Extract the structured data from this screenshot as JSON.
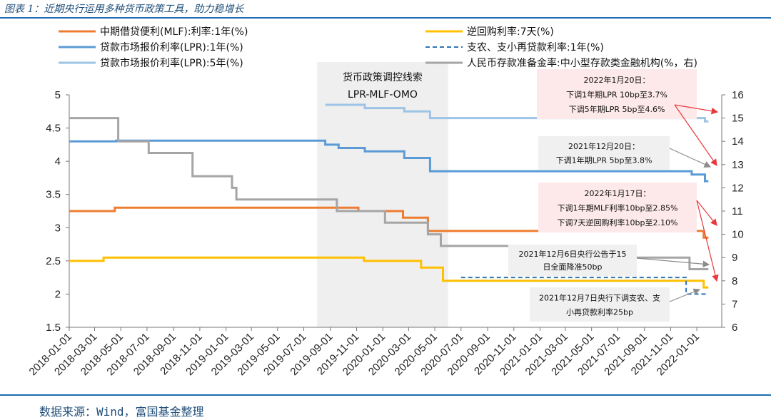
{
  "header": {
    "figure_title": "图表 1：近期央行运用多种货币政策工具，助力稳增长"
  },
  "footer": {
    "source": "数据来源：Wind，富国基金整理"
  },
  "chart_data": {
    "type": "line",
    "x_type": "date",
    "xlim": [
      "2018-01-01",
      "2022-02-28"
    ],
    "x_tick_labels": [
      "2018-01-01",
      "2018-03-01",
      "2018-05-01",
      "2018-07-01",
      "2018-09-01",
      "2018-11-01",
      "2019-01-01",
      "2019-03-01",
      "2019-05-01",
      "2019-07-01",
      "2019-09-01",
      "2019-11-01",
      "2020-01-01",
      "2020-03-01",
      "2020-05-01",
      "2020-07-01",
      "2020-09-01",
      "2020-11-01",
      "2021-01-01",
      "2021-03-01",
      "2021-05-01",
      "2021-07-01",
      "2021-09-01",
      "2021-11-01",
      "2022-01-01"
    ],
    "y_left": {
      "lim": [
        1.5,
        5
      ],
      "ticks": [
        "1.5",
        "2",
        "2.5",
        "3",
        "3.5",
        "4",
        "4.5",
        "5"
      ]
    },
    "y_right": {
      "lim": [
        6,
        16
      ],
      "ticks": [
        "6",
        "7",
        "8",
        "9",
        "10",
        "11",
        "12",
        "13",
        "14",
        "15",
        "16"
      ]
    },
    "grid": false,
    "legend_position": "top",
    "series": [
      {
        "name": "中期借贷便利(MLF):利率:1年(%)",
        "color": "#ed7d31",
        "axis": "left",
        "style": "solid",
        "points": [
          [
            "2018-01-01",
            3.25
          ],
          [
            "2018-04-17",
            3.25
          ],
          [
            "2018-04-17",
            3.3
          ],
          [
            "2019-11-05",
            3.3
          ],
          [
            "2019-11-05",
            3.25
          ],
          [
            "2020-02-17",
            3.25
          ],
          [
            "2020-02-17",
            3.15
          ],
          [
            "2020-04-15",
            3.15
          ],
          [
            "2020-04-15",
            2.95
          ],
          [
            "2022-01-17",
            2.95
          ],
          [
            "2022-01-17",
            2.85
          ],
          [
            "2022-01-28",
            2.85
          ]
        ]
      },
      {
        "name": "逆回购利率:7天(%)",
        "color": "#ffc000",
        "axis": "left",
        "style": "solid",
        "points": [
          [
            "2018-01-01",
            2.5
          ],
          [
            "2018-03-22",
            2.5
          ],
          [
            "2018-03-22",
            2.55
          ],
          [
            "2019-11-18",
            2.55
          ],
          [
            "2019-11-18",
            2.5
          ],
          [
            "2020-03-30",
            2.5
          ],
          [
            "2020-03-30",
            2.4
          ],
          [
            "2020-05-20",
            2.4
          ],
          [
            "2020-05-20",
            2.2
          ],
          [
            "2022-01-17",
            2.2
          ],
          [
            "2022-01-17",
            2.1
          ],
          [
            "2022-01-28",
            2.1
          ]
        ]
      },
      {
        "name": "贷款市场报价利率(LPR):1年(%)",
        "color": "#5b9bd5",
        "axis": "left",
        "style": "solid",
        "points": [
          [
            "2018-01-01",
            4.3
          ],
          [
            "2018-04-20",
            4.3
          ],
          [
            "2018-04-20",
            4.31
          ],
          [
            "2019-08-20",
            4.31
          ],
          [
            "2019-08-20",
            4.25
          ],
          [
            "2019-09-20",
            4.25
          ],
          [
            "2019-09-20",
            4.2
          ],
          [
            "2019-11-20",
            4.2
          ],
          [
            "2019-11-20",
            4.15
          ],
          [
            "2020-02-20",
            4.15
          ],
          [
            "2020-02-20",
            4.05
          ],
          [
            "2020-04-20",
            4.05
          ],
          [
            "2020-04-20",
            3.85
          ],
          [
            "2021-12-20",
            3.85
          ],
          [
            "2021-12-20",
            3.8
          ],
          [
            "2022-01-20",
            3.8
          ],
          [
            "2022-01-20",
            3.7
          ],
          [
            "2022-01-28",
            3.7
          ]
        ]
      },
      {
        "name": "支农、支小再贷款利率:1年(%)",
        "color": "#2e75b6",
        "axis": "left",
        "style": "dashed",
        "points": [
          [
            "2020-07-01",
            2.25
          ],
          [
            "2021-12-07",
            2.25
          ],
          [
            "2021-12-07",
            2.0
          ],
          [
            "2022-01-28",
            2.0
          ]
        ]
      },
      {
        "name": "贷款市场报价利率(LPR):5年(%)",
        "color": "#9dc3e6",
        "axis": "left",
        "style": "solid",
        "points": [
          [
            "2019-08-20",
            4.85
          ],
          [
            "2019-11-20",
            4.85
          ],
          [
            "2019-11-20",
            4.8
          ],
          [
            "2020-02-20",
            4.8
          ],
          [
            "2020-02-20",
            4.75
          ],
          [
            "2020-04-20",
            4.75
          ],
          [
            "2020-04-20",
            4.65
          ],
          [
            "2022-01-20",
            4.65
          ],
          [
            "2022-01-20",
            4.6
          ],
          [
            "2022-01-28",
            4.6
          ]
        ]
      },
      {
        "name": "人民币存款准备金率:中小型存款类金融机构(%，右)",
        "color": "#a5a5a5",
        "axis": "right",
        "style": "solid",
        "points": [
          [
            "2018-01-01",
            15.0
          ],
          [
            "2018-04-25",
            15.0
          ],
          [
            "2018-04-25",
            14.0
          ],
          [
            "2018-07-05",
            14.0
          ],
          [
            "2018-07-05",
            13.5
          ],
          [
            "2018-10-15",
            13.5
          ],
          [
            "2018-10-15",
            12.5
          ],
          [
            "2019-01-15",
            12.5
          ],
          [
            "2019-01-15",
            12.0
          ],
          [
            "2019-01-25",
            12.0
          ],
          [
            "2019-01-25",
            11.5
          ],
          [
            "2019-09-16",
            11.5
          ],
          [
            "2019-09-16",
            11.0
          ],
          [
            "2020-01-06",
            11.0
          ],
          [
            "2020-01-06",
            10.5
          ],
          [
            "2020-04-15",
            10.5
          ],
          [
            "2020-04-15",
            10.0
          ],
          [
            "2020-05-15",
            10.0
          ],
          [
            "2020-05-15",
            9.5
          ],
          [
            "2021-07-15",
            9.5
          ],
          [
            "2021-07-15",
            9.0
          ],
          [
            "2021-12-15",
            9.0
          ],
          [
            "2021-12-15",
            8.5
          ],
          [
            "2022-01-28",
            8.5
          ]
        ]
      }
    ],
    "shaded_band": {
      "x": [
        "2019-08-01",
        "2020-06-01"
      ],
      "label_line1": "货币政策调控线索",
      "label_line2": "LPR-MLF-OMO"
    },
    "annotations": [
      {
        "kind": "pink",
        "lines": [
          "2022年1月20日：",
          "下调1年期LPR 10bp至3.7%",
          "下调5年期LPR 5bp至4.6%"
        ]
      },
      {
        "kind": "gray",
        "lines": [
          "2021年12月20日：",
          "下调1年期LPR 5bp至3.8%"
        ]
      },
      {
        "kind": "pink",
        "lines": [
          "2022年1月17日：",
          "下调1年期MLF利率10bp至2.85%",
          "下调7天逆回购利率10bp至2.10%"
        ]
      },
      {
        "kind": "gray",
        "lines": [
          "2021年12月6日央行公告于15",
          "日全面降准50bp"
        ]
      },
      {
        "kind": "gray",
        "lines": [
          "2021年12月7日央行下调支农、支",
          "小再贷款利率25bp"
        ]
      }
    ]
  }
}
